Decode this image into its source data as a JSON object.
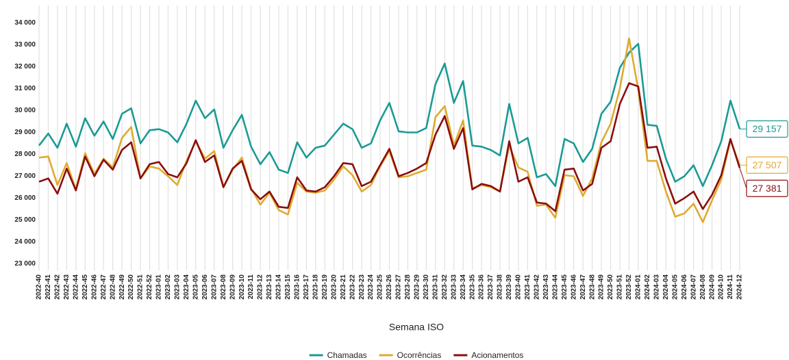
{
  "chart_data": {
    "type": "line",
    "x_label": "Semana ISO",
    "categories": [
      "2022-40",
      "2022-41",
      "2022-42",
      "2022-43",
      "2022-44",
      "2022-45",
      "2022-46",
      "2022-47",
      "2022-48",
      "2022-49",
      "2022-50",
      "2022-51",
      "2022-52",
      "2023-01",
      "2023-02",
      "2023-03",
      "2023-04",
      "2023-05",
      "2023-06",
      "2023-07",
      "2023-08",
      "2023-09",
      "2023-10",
      "2023-11",
      "2023-12",
      "2023-13",
      "2023-14",
      "2023-15",
      "2023-16",
      "2023-17",
      "2023-18",
      "2023-19",
      "2023-20",
      "2023-21",
      "2023-22",
      "2023-23",
      "2023-24",
      "2023-25",
      "2023-26",
      "2023-27",
      "2023-28",
      "2023-29",
      "2023-30",
      "2023-31",
      "2023-32",
      "2023-33",
      "2023-34",
      "2023-35",
      "2023-36",
      "2023-37",
      "2023-38",
      "2023-39",
      "2023-40",
      "2023-41",
      "2023-42",
      "2023-43",
      "2023-44",
      "2023-45",
      "2023-46",
      "2023-47",
      "2023-48",
      "2023-49",
      "2023-50",
      "2023-51",
      "2023-52",
      "2024-01",
      "2024-02",
      "2024-03",
      "2024-04",
      "2024-05",
      "2024-06",
      "2024-07",
      "2024-08",
      "2024-09",
      "2024-10",
      "2024-11",
      "2024-12"
    ],
    "series": [
      {
        "name": "Chamadas",
        "color": "#1a9a94",
        "values": [
          28400,
          28950,
          28300,
          29400,
          28350,
          29650,
          28850,
          29500,
          28700,
          29850,
          30100,
          28500,
          29100,
          29150,
          29000,
          28550,
          29400,
          30450,
          29650,
          30050,
          28300,
          29100,
          29800,
          28350,
          27550,
          28100,
          27300,
          27150,
          28550,
          27850,
          28300,
          28400,
          28900,
          29400,
          29150,
          28300,
          28500,
          29550,
          30350,
          29050,
          29000,
          29000,
          29200,
          31200,
          32150,
          30350,
          31350,
          28400,
          28350,
          28200,
          27950,
          30300,
          28500,
          28750,
          26950,
          27100,
          26550,
          28700,
          28500,
          27650,
          28250,
          29850,
          30400,
          31950,
          32650,
          33050,
          29350,
          29300,
          27800,
          26750,
          27000,
          27500,
          26550,
          27500,
          28600,
          30450,
          29157
        ],
        "value_labels": [
          null,
          null,
          null,
          null,
          null,
          null,
          null,
          null,
          null,
          null,
          null,
          null,
          null,
          null,
          null,
          null,
          null,
          null,
          null,
          null,
          null,
          null,
          null,
          null,
          null,
          null,
          null,
          null,
          null,
          null,
          null,
          null,
          null,
          null,
          null,
          null,
          null,
          null,
          null,
          null,
          null,
          null,
          null,
          null,
          null,
          null,
          null,
          null,
          null,
          null,
          null,
          null,
          null,
          null,
          null,
          null,
          null,
          null,
          null,
          null,
          null,
          null,
          null,
          null,
          null,
          null,
          null,
          null,
          null,
          null,
          null,
          null,
          null,
          null,
          null,
          null,
          "29 157"
        ]
      },
      {
        "name": "Ocorrências",
        "color": "#e0aa2e",
        "values": [
          27850,
          27900,
          26600,
          27600,
          26400,
          28050,
          27100,
          27800,
          27400,
          28750,
          29250,
          26900,
          27450,
          27350,
          27000,
          26600,
          27700,
          28600,
          27800,
          28150,
          26500,
          27300,
          27850,
          26450,
          25700,
          26250,
          25450,
          25250,
          26700,
          26300,
          26250,
          26350,
          26850,
          27450,
          27050,
          26300,
          26600,
          27450,
          28150,
          26950,
          27000,
          27150,
          27300,
          29700,
          30200,
          28400,
          29550,
          26450,
          26600,
          26500,
          26300,
          28400,
          27400,
          27200,
          25650,
          25700,
          25100,
          27050,
          27000,
          26100,
          26900,
          28550,
          29400,
          31000,
          33300,
          30950,
          27700,
          27700,
          26300,
          25150,
          25300,
          25750,
          24900,
          25900,
          26850,
          28650,
          27507
        ],
        "value_labels": [
          null,
          null,
          null,
          null,
          null,
          null,
          null,
          null,
          null,
          null,
          null,
          null,
          null,
          null,
          null,
          null,
          null,
          null,
          null,
          null,
          null,
          null,
          null,
          null,
          null,
          null,
          null,
          null,
          null,
          null,
          null,
          null,
          null,
          null,
          null,
          null,
          null,
          null,
          null,
          null,
          null,
          null,
          null,
          null,
          null,
          null,
          null,
          null,
          null,
          null,
          null,
          null,
          null,
          null,
          null,
          null,
          null,
          null,
          null,
          null,
          null,
          null,
          null,
          null,
          null,
          null,
          null,
          null,
          null,
          null,
          null,
          null,
          null,
          null,
          null,
          null,
          "27 507"
        ]
      },
      {
        "name": "Acionamentos",
        "color": "#8b0d0d",
        "values": [
          26750,
          26900,
          26200,
          27350,
          26350,
          27900,
          27000,
          27750,
          27300,
          28200,
          28550,
          26900,
          27550,
          27650,
          27100,
          26950,
          27600,
          28650,
          27650,
          27950,
          26500,
          27350,
          27700,
          26400,
          25950,
          26300,
          25600,
          25550,
          26950,
          26350,
          26300,
          26500,
          27000,
          27600,
          27550,
          26550,
          26750,
          27500,
          28250,
          27000,
          27150,
          27350,
          27600,
          28900,
          29750,
          28250,
          29200,
          26400,
          26650,
          26550,
          26300,
          28600,
          26750,
          26950,
          25800,
          25750,
          25400,
          27300,
          27350,
          26350,
          26650,
          28300,
          28600,
          30300,
          31250,
          31100,
          28300,
          28350,
          26900,
          25750,
          26000,
          26300,
          25500,
          26150,
          27050,
          28700,
          27381
        ],
        "value_labels": [
          null,
          null,
          null,
          null,
          null,
          null,
          null,
          null,
          null,
          null,
          null,
          null,
          null,
          null,
          null,
          null,
          null,
          null,
          null,
          null,
          null,
          null,
          null,
          null,
          null,
          null,
          null,
          null,
          null,
          null,
          null,
          null,
          null,
          null,
          null,
          null,
          null,
          null,
          null,
          null,
          null,
          null,
          null,
          null,
          null,
          null,
          null,
          null,
          null,
          null,
          null,
          null,
          null,
          null,
          null,
          null,
          null,
          null,
          null,
          null,
          null,
          null,
          null,
          null,
          null,
          null,
          null,
          null,
          null,
          null,
          null,
          null,
          null,
          null,
          null,
          null,
          "27 381"
        ]
      }
    ],
    "ylim": [
      22700,
      34800
    ],
    "yticks": [
      {
        "value": 23000,
        "label": "23 000"
      },
      {
        "value": 24000,
        "label": "24 000"
      },
      {
        "value": 25000,
        "label": "25 000"
      },
      {
        "value": 26000,
        "label": "26 000"
      },
      {
        "value": 27000,
        "label": "27 000"
      },
      {
        "value": 28000,
        "label": "28 000"
      },
      {
        "value": 29000,
        "label": "29 000"
      },
      {
        "value": 30000,
        "label": "30 000"
      },
      {
        "value": 31000,
        "label": "31 000"
      },
      {
        "value": 32000,
        "label": "32 000"
      },
      {
        "value": 33000,
        "label": "33 000"
      },
      {
        "value": 34000,
        "label": "34 000"
      }
    ],
    "grid": "x",
    "legend": "bottom"
  }
}
